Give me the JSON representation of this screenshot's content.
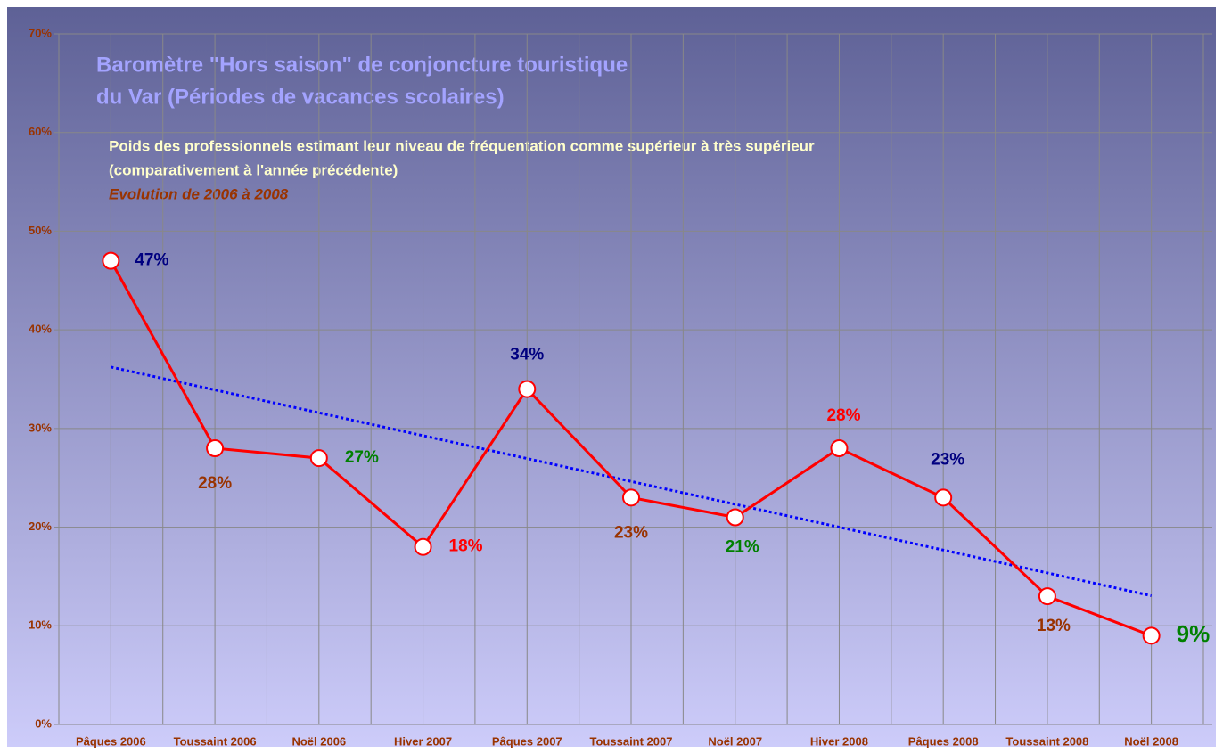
{
  "chart_data": {
    "type": "line",
    "title": [
      "Baromètre \"Hors saison\" de conjoncture touristique",
      "du Var (Périodes de vacances scolaires)"
    ],
    "subtitle": [
      "Poids des professionnels estimant leur niveau de fréquentation comme supérieur à très supérieur",
      "(comparativement à l'année précédente)"
    ],
    "annotation": "Evolution de 2006 à 2008",
    "categories": [
      "Pâques 2006",
      "Toussaint 2006",
      "Noël 2006",
      "Hiver 2007",
      "Pâques 2007",
      "Toussaint 2007",
      "Noël 2007",
      "Hiver 2008",
      "Pâques 2008",
      "Toussaint 2008",
      "Noël 2008"
    ],
    "series": [
      {
        "color": "#ff0000",
        "values": [
          47,
          28,
          27,
          18,
          34,
          23,
          21,
          28,
          23,
          13,
          9
        ],
        "value_labels": [
          "47%",
          "28%",
          "27%",
          "18%",
          "34%",
          "23%",
          "21%",
          "28%",
          "23%",
          "13%",
          "9%"
        ],
        "label_colors": [
          "#000080",
          "#993300",
          "#008000",
          "#ff0000",
          "#000080",
          "#993300",
          "#008000",
          "#ff0000",
          "#000080",
          "#993300",
          "#008000"
        ]
      }
    ],
    "trendline": {
      "type": "linear",
      "color": "#0000ff"
    },
    "ylim": [
      0,
      70
    ],
    "yticks": [
      {
        "value": 0,
        "label": "0%"
      },
      {
        "value": 10,
        "label": "10%"
      },
      {
        "value": 20,
        "label": "20%"
      },
      {
        "value": 30,
        "label": "30%"
      },
      {
        "value": 40,
        "label": "40%"
      },
      {
        "value": 50,
        "label": "50%"
      },
      {
        "value": 60,
        "label": "60%"
      },
      {
        "value": 70,
        "label": "70%"
      }
    ],
    "grid": true
  }
}
